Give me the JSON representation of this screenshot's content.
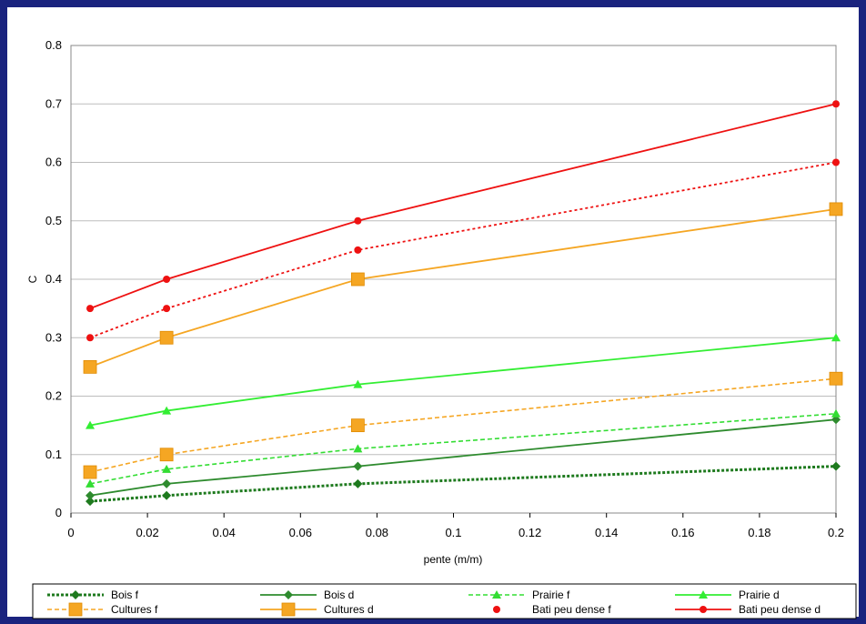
{
  "chart_data": {
    "type": "line",
    "xlabel": "pente (m/m)",
    "ylabel": "C",
    "xlim": [
      0,
      0.2
    ],
    "ylim": [
      0,
      0.8
    ],
    "xticks": [
      "0",
      "0.02",
      "0.04",
      "0.06",
      "0.08",
      "0.1",
      "0.12",
      "0.14",
      "0.16",
      "0.18",
      "0.2"
    ],
    "yticks": [
      "0",
      "0.1",
      "0.2",
      "0.3",
      "0.4",
      "0.5",
      "0.6",
      "0.7",
      "0.8"
    ],
    "grid": "horizontal",
    "legend_placement": "bottom",
    "x": [
      0.005,
      0.025,
      0.075,
      0.2
    ],
    "series": [
      {
        "name": "Bois f",
        "values": [
          0.02,
          0.03,
          0.05,
          0.08
        ],
        "color": "#1e7a1e",
        "dash": "dotted-bold",
        "marker": "diamond"
      },
      {
        "name": "Bois d",
        "values": [
          0.03,
          0.05,
          0.08,
          0.16
        ],
        "color": "#2e8b2e",
        "dash": "solid",
        "marker": "diamond"
      },
      {
        "name": "Prairie f",
        "values": [
          0.05,
          0.075,
          0.11,
          0.17
        ],
        "color": "#33dd33",
        "dash": "dashed",
        "marker": "triangle"
      },
      {
        "name": "Prairie d",
        "values": [
          0.15,
          0.175,
          0.22,
          0.3
        ],
        "color": "#33ee33",
        "dash": "solid",
        "marker": "triangle"
      },
      {
        "name": "Cultures f",
        "values": [
          0.07,
          0.1,
          0.15,
          0.23
        ],
        "color": "#f5a623",
        "dash": "dashed",
        "marker": "square"
      },
      {
        "name": "Cultures d",
        "values": [
          0.25,
          0.3,
          0.4,
          0.52
        ],
        "color": "#f5a623",
        "dash": "solid",
        "marker": "square"
      },
      {
        "name": "Bati peu dense f",
        "values": [
          0.3,
          0.35,
          0.45,
          0.6
        ],
        "color": "#ee1111",
        "dash": "dotted",
        "marker": "circle"
      },
      {
        "name": "Bati peu dense d",
        "values": [
          0.35,
          0.4,
          0.5,
          0.7
        ],
        "color": "#ee1111",
        "dash": "solid",
        "marker": "circle"
      }
    ]
  }
}
